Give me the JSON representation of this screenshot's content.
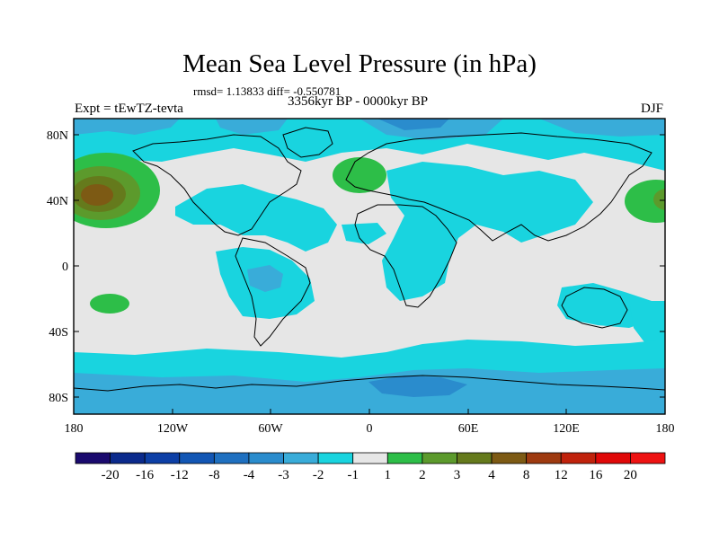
{
  "title": "Mean Sea Level Pressure (in hPa)",
  "stats": "rmsd= 1.13833 diff= -0.550781",
  "experiment": "Expt = tEwTZ-tevta",
  "period": "3356kyr BP - 0000kyr BP",
  "season": "DJF",
  "y_axis_labels": [
    "80N",
    "40N",
    "0",
    "40S",
    "80S"
  ],
  "x_axis_labels": [
    "180",
    "120W",
    "60W",
    "0",
    "60E",
    "120E",
    "180"
  ],
  "colorbar": {
    "labels": [
      "-20",
      "-16",
      "-12",
      "-8",
      "-4",
      "-3",
      "-2",
      "-1",
      "1",
      "2",
      "3",
      "4",
      "8",
      "12",
      "16",
      "20"
    ],
    "colors": [
      "#1a0a6e",
      "#0b2a8c",
      "#0d3fa6",
      "#1256b4",
      "#1f70c0",
      "#2a8ccd",
      "#39acd9",
      "#19d4df",
      "#e6e6e6",
      "#2dbe48",
      "#5c9a2c",
      "#657a1c",
      "#7d5a14",
      "#9e3a10",
      "#c0220c",
      "#e00808",
      "#ee1212"
    ]
  },
  "colors": {
    "land_neutral": "#e6e6e6",
    "cyan": "#19d4df",
    "light_blue": "#39acd9",
    "mid_blue": "#2a8ccd",
    "green": "#2dbe48",
    "olive": "#5c9a2c",
    "brown": "#7d5a14",
    "coast": "#000000"
  }
}
